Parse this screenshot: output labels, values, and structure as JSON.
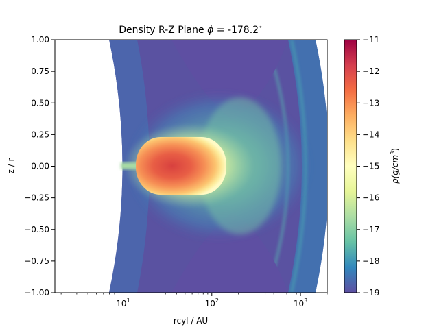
{
  "chart_data": {
    "type": "heatmap",
    "title_prefix": "Density R-Z Plane",
    "phi_symbol": "ϕ",
    "phi_value": " =  -178.2",
    "phi_unit": "∘",
    "xlabel": "rcyl / AU",
    "ylabel": "z / r",
    "xscale": "log",
    "xlim": [
      1.7,
      2000
    ],
    "ylim": [
      -1.0,
      1.0
    ],
    "x_major_ticks": [
      {
        "value": 10,
        "base": "10",
        "exp": "1"
      },
      {
        "value": 100,
        "base": "10",
        "exp": "2"
      },
      {
        "value": 1000,
        "base": "10",
        "exp": "3"
      }
    ],
    "y_ticks": [
      {
        "value": 1.0,
        "label": "1.00"
      },
      {
        "value": 0.75,
        "label": "0.75"
      },
      {
        "value": 0.5,
        "label": "0.50"
      },
      {
        "value": 0.25,
        "label": "0.25"
      },
      {
        "value": 0.0,
        "label": "0.00"
      },
      {
        "value": -0.25,
        "label": "−0.25"
      },
      {
        "value": -0.5,
        "label": "−0.50"
      },
      {
        "value": -0.75,
        "label": "−0.75"
      },
      {
        "value": -1.0,
        "label": "−1.00"
      }
    ],
    "colorbar": {
      "label_rho": "ρ",
      "label_unit": "(g/cm",
      "label_exp": "3",
      "label_close": ")",
      "colormap": "Spectral_r",
      "range": [
        -19,
        -11
      ],
      "ticks": [
        {
          "value": -11,
          "label": "−11"
        },
        {
          "value": -12,
          "label": "−12"
        },
        {
          "value": -13,
          "label": "−13"
        },
        {
          "value": -14,
          "label": "−14"
        },
        {
          "value": -15,
          "label": "−15"
        },
        {
          "value": -16,
          "label": "−16"
        },
        {
          "value": -17,
          "label": "−17"
        },
        {
          "value": -18,
          "label": "−18"
        },
        {
          "value": -19,
          "label": "−19"
        }
      ]
    },
    "colors": {
      "background_density": "#5e4fa2",
      "outer_envelope": "#3e6fb0",
      "core_peak": "#d8413f"
    }
  }
}
